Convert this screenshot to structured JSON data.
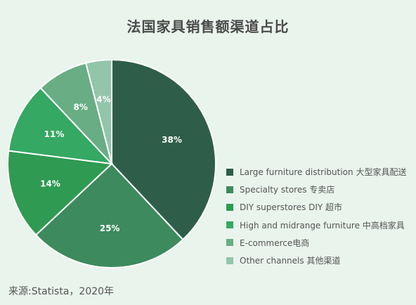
{
  "chart_data": {
    "type": "pie",
    "title": "法国家具销售额渠道占比",
    "categories": [
      "Large furniture distribution 大型家具配送",
      "Specialty stores 专卖店",
      "DIY superstores DIY 超市",
      "High and midrange furniture 中高档家具",
      "E-commerce电商",
      "Other channels 其他渠道"
    ],
    "values": [
      38,
      25,
      14,
      11,
      8,
      4
    ],
    "labels": [
      "38%",
      "25%",
      "14%",
      "11%",
      "8%",
      "4%"
    ],
    "colors": [
      "#2e5e49",
      "#3d8a5e",
      "#2f9a52",
      "#35a863",
      "#68ad84",
      "#93c5aa"
    ],
    "legend_position": "right"
  },
  "source": "来源:Statista，2020年"
}
